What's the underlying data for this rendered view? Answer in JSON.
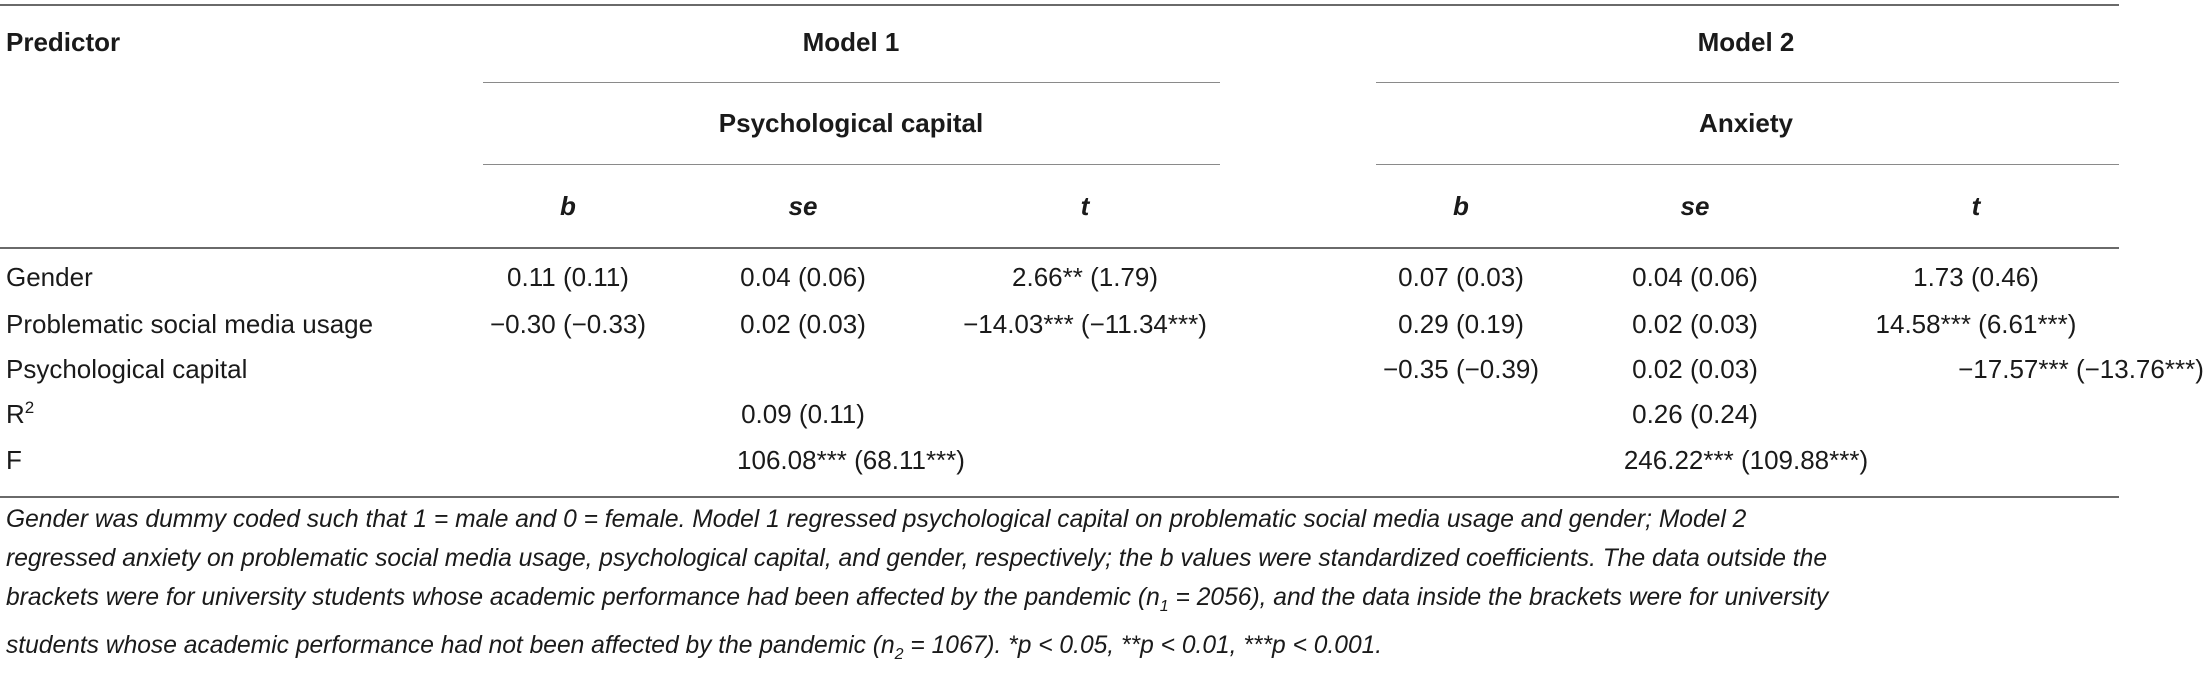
{
  "header": {
    "predictor": "Predictor",
    "model1": "Model 1",
    "model2": "Model 2",
    "model1_outcome": "Psychological capital",
    "model2_outcome": "Anxiety",
    "col_b": "b",
    "col_se": "se",
    "col_t": "t"
  },
  "rows": [
    {
      "label": "Gender",
      "m1": {
        "b": "0.11 (0.11)",
        "se": "0.04 (0.06)",
        "t": "2.66** (1.79)"
      },
      "m2": {
        "b": "0.07 (0.03)",
        "se": "0.04 (0.06)",
        "t": "1.73 (0.46)"
      }
    },
    {
      "label": "Problematic social media usage",
      "m1": {
        "b": "−0.30 (−0.33)",
        "se": "0.02 (0.03)",
        "t": "−14.03*** (−11.34***)"
      },
      "m2": {
        "b": "0.29 (0.19)",
        "se": "0.02 (0.03)",
        "t": "14.58*** (6.61***)"
      }
    },
    {
      "label": "Psychological capital",
      "m1": {
        "b": "",
        "se": "",
        "t": ""
      },
      "m2": {
        "b": "−0.35 (−0.39)",
        "se": "0.02 (0.03)",
        "t": "−17.57*** (−13.76***)"
      }
    }
  ],
  "r2": {
    "label": "R",
    "label_sup": "2",
    "m1": "0.09 (0.11)",
    "m2": "0.26 (0.24)"
  },
  "f": {
    "label": "F",
    "m1": "106.08*** (68.11***)",
    "m2": "246.22*** (109.88***)"
  },
  "note": {
    "line1": "Gender was dummy coded such that 1 = male and 0 = female. Model 1 regressed psychological capital on problematic social media usage and gender; Model 2",
    "line2": "regressed anxiety on problematic social media usage, psychological capital, and gender, respectively; the b values were standardized coefficients. The data outside the",
    "line3a": "brackets were for university students whose academic performance had been affected by the pandemic (n",
    "line3_sub": "1",
    "line3b": " = 2056), and the data inside the brackets were for university",
    "line4a": "students whose academic performance had not been affected by the pandemic (n",
    "line4_sub": "2",
    "line4b": " = 1067). *p < 0.05, **p < 0.01, ***p < 0.001."
  }
}
